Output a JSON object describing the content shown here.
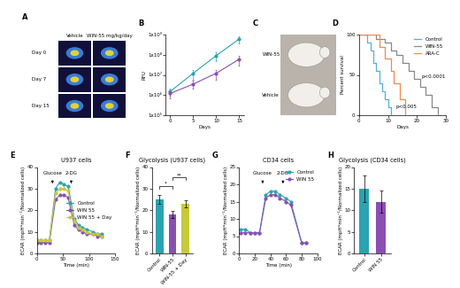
{
  "chart_data": [
    {
      "panel": "A",
      "type": "images",
      "columns": [
        "Vehicle",
        "WIN-55 mg/kg/day"
      ],
      "rows": [
        "Day 0",
        "Day 7",
        "Day 15"
      ]
    },
    {
      "panel": "B",
      "type": "line",
      "x": [
        0,
        5,
        10,
        15
      ],
      "series": [
        {
          "color": "#2ba3b0",
          "values": [
            1500000,
            12000000,
            90000000,
            600000000
          ],
          "errors": [
            600000,
            6000000,
            40000000,
            250000000
          ]
        },
        {
          "color": "#8a4fb0",
          "values": [
            1200000,
            3500000,
            12000000,
            60000000
          ],
          "errors": [
            500000,
            1500000,
            6000000,
            30000000
          ]
        }
      ],
      "marker": "o",
      "log": "y",
      "x_label": "Days",
      "y_label": "RFU",
      "xlim": [
        -1,
        16
      ],
      "xticks": [
        0,
        5,
        10,
        15
      ],
      "ylim": [
        100000,
        1000000000
      ],
      "yticks": [
        {
          "value": 100000,
          "label": "1x10⁵"
        },
        {
          "value": 1000000,
          "label": "1x10⁶"
        },
        {
          "value": 10000000,
          "label": "1x10⁷"
        },
        {
          "value": 100000000,
          "label": "1x10⁸"
        },
        {
          "value": 1000000000,
          "label": "1x10⁹"
        }
      ]
    },
    {
      "panel": "C",
      "type": "photo",
      "labels": [
        "WIN-55",
        "Vehicle"
      ]
    },
    {
      "panel": "D",
      "type": "step",
      "series": [
        {
          "name": "Control",
          "color": "#4fb3d9",
          "x": [
            0,
            3,
            4,
            5,
            6,
            7,
            8,
            9,
            10,
            11
          ],
          "values": [
            100,
            90,
            80,
            65,
            55,
            40,
            30,
            20,
            10,
            0
          ]
        },
        {
          "name": "WIN-55",
          "color": "#888888",
          "x": [
            0,
            6,
            9,
            11,
            13,
            15,
            17,
            19,
            21,
            23,
            25,
            27
          ],
          "values": [
            100,
            95,
            90,
            80,
            75,
            65,
            55,
            45,
            35,
            25,
            10,
            0
          ]
        },
        {
          "name": "ARA-C",
          "color": "#f08a4b",
          "x": [
            0,
            7,
            9,
            11,
            12,
            14,
            16
          ],
          "values": [
            100,
            85,
            70,
            55,
            40,
            20,
            0
          ]
        }
      ],
      "x_label": "Days",
      "y_label": "Percent survival",
      "xlim": [
        0,
        30
      ],
      "xticks": [
        0,
        10,
        20,
        30
      ],
      "ylim": [
        0,
        100
      ],
      "yticks": [
        0,
        50,
        100
      ],
      "legend": "upper right",
      "annotations": [
        {
          "text": "p<0.005"
        },
        {
          "text": "p<0.0001"
        }
      ]
    },
    {
      "panel": "E",
      "type": "line",
      "title": "U937 cells",
      "x": [
        0,
        8,
        16,
        24,
        36,
        44,
        52,
        60,
        72,
        80,
        88,
        96,
        108,
        116,
        124
      ],
      "series": [
        {
          "name": "Control",
          "color": "#2ba3b0",
          "values": [
            6,
            6,
            6,
            6,
            30,
            33,
            32,
            31,
            16,
            13,
            12,
            11,
            10,
            9,
            9
          ]
        },
        {
          "name": "WIN 55",
          "color": "#8a4fb0",
          "values": [
            5,
            5,
            5,
            5,
            25,
            27,
            27,
            26,
            13,
            11,
            10,
            9,
            9,
            8,
            8
          ]
        },
        {
          "name": "WIN 55 + Day",
          "color": "#c5c93a",
          "values": [
            6,
            6,
            6,
            6,
            28,
            30,
            30,
            29,
            15,
            12,
            11,
            10,
            9,
            9,
            8
          ]
        }
      ],
      "marker": "o",
      "x_label": "Time (min)",
      "y_label": "ECAR (mpH*min⁻¹/Normalized cells)",
      "xlim": [
        0,
        150
      ],
      "xticks": [
        0,
        50,
        100,
        150
      ],
      "ylim": [
        0,
        40
      ],
      "yticks": [
        0,
        10,
        20,
        30,
        40
      ],
      "legend": "center right",
      "annotations": [
        {
          "text": "Glucose",
          "x": 30
        },
        {
          "text": "2-DG",
          "x": 66
        }
      ]
    },
    {
      "panel": "F",
      "type": "bar",
      "title": "Glycolysis (U937 cells)",
      "categories": [
        "Control",
        "WIN-55",
        "WIN-55 + Day"
      ],
      "values": [
        25,
        18,
        23
      ],
      "errors": [
        2,
        1.5,
        1.5
      ],
      "colors": [
        "#2ba3b0",
        "#8a4fb0",
        "#c5c93a"
      ],
      "y_label": "ECAR (mpH*min⁻¹/Normalized cells)",
      "ylim": [
        0,
        40
      ],
      "yticks": [
        0,
        10,
        20,
        30,
        40
      ],
      "annotations": [
        {
          "text": "*",
          "between": [
            0,
            1
          ]
        },
        {
          "text": "**",
          "between": [
            1,
            2
          ]
        }
      ]
    },
    {
      "panel": "G",
      "type": "line",
      "title": "CD34 cells",
      "x": [
        2,
        8,
        14,
        20,
        26,
        34,
        40,
        46,
        52,
        60,
        66,
        80,
        86
      ],
      "series": [
        {
          "name": "Control",
          "color": "#2ba3b0",
          "values": [
            7,
            7,
            6,
            6,
            6,
            17,
            18,
            18,
            17,
            16,
            15,
            3,
            3
          ]
        },
        {
          "name": "WIN 55",
          "color": "#8a4fb0",
          "values": [
            6,
            6,
            6,
            6,
            6,
            16,
            17,
            17,
            16,
            15,
            14,
            3,
            3
          ]
        }
      ],
      "marker": "o",
      "x_label": "Time (min)",
      "y_label": "ECAR (mpH*min⁻¹/Normalized cells)",
      "xlim": [
        0,
        100
      ],
      "xticks": [
        0,
        20,
        40,
        60,
        80,
        100
      ],
      "ylim": [
        0,
        25
      ],
      "yticks": [
        0,
        5,
        10,
        15,
        20,
        25
      ],
      "legend": "upper right",
      "annotations": [
        {
          "text": "Glucose",
          "x": 30
        },
        {
          "text": "2-DG",
          "x": 56
        }
      ]
    },
    {
      "panel": "H",
      "type": "bar",
      "title": "Glycolysis (CD34 cells)",
      "categories": [
        "Control",
        "WIN 55"
      ],
      "values": [
        15,
        12
      ],
      "errors": [
        3,
        2.5
      ],
      "colors": [
        "#2ba3b0",
        "#8a4fb0"
      ],
      "y_label": "ECAR (mpH*min⁻¹/Normalized cells)",
      "ylim": [
        0,
        20
      ],
      "yticks": [
        0,
        5,
        10,
        15,
        20
      ]
    }
  ]
}
